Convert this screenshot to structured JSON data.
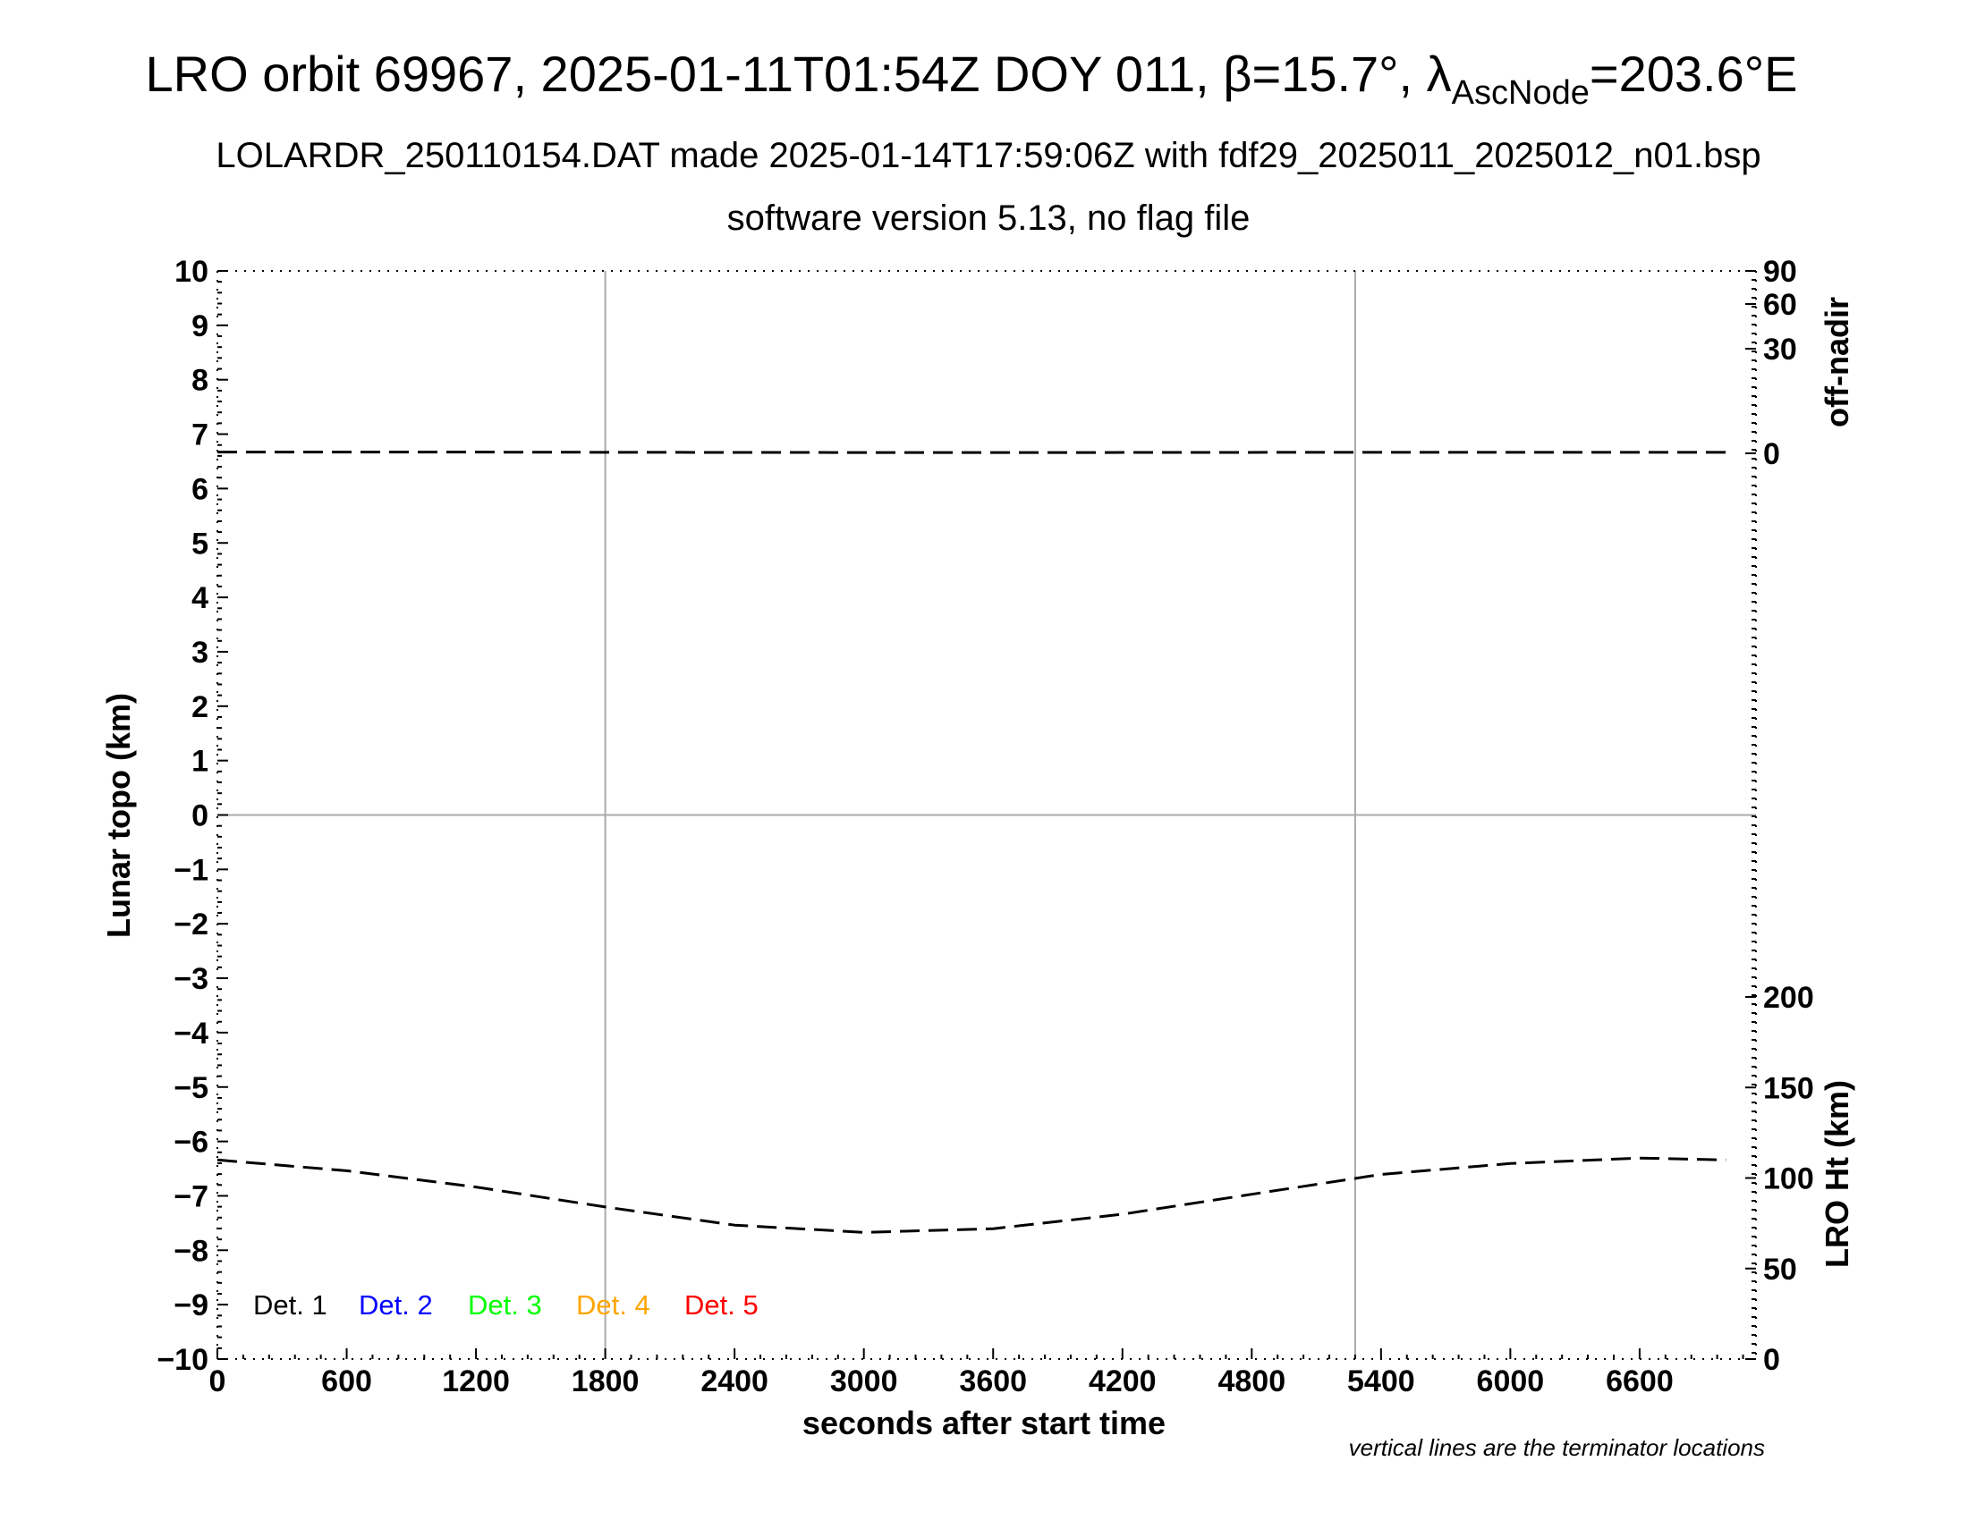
{
  "chart_data": {
    "type": "line",
    "title": {
      "main": "LRO orbit 69967, 2025-01-11T01:54Z DOY 011, β=15.7°, λ",
      "sub": "AscNode",
      "tail": "=203.6°E"
    },
    "subtitle_lines": [
      "LOLARDR_250110154.DAT made 2025-01-14T17:59:06Z with fdf29_2025011_2025012_n01.bsp",
      "software version 5.13, no flag file"
    ],
    "xlabel": "seconds after start time",
    "ylabel": "Lunar topo (km)",
    "y2_top_label": "off-nadir",
    "y2_bottom_label": "LRO Ht (km)",
    "note": "vertical lines are the terminator locations",
    "xlim": [
      0,
      7140
    ],
    "ylim": [
      -10,
      10
    ],
    "x_ticks": [
      0,
      600,
      1200,
      1800,
      2400,
      3000,
      3600,
      4200,
      4800,
      5400,
      6000,
      6600
    ],
    "y_ticks": [
      "10",
      "9",
      "8",
      "7",
      "6",
      "5",
      "4",
      "3",
      "2",
      "1",
      "0",
      "−1",
      "−2",
      "−3",
      "−4",
      "−5",
      "−6",
      "−7",
      "−8",
      "−9",
      "−10"
    ],
    "y_tick_values": [
      10,
      9,
      8,
      7,
      6,
      5,
      4,
      3,
      2,
      1,
      0,
      -1,
      -2,
      -3,
      -4,
      -5,
      -6,
      -7,
      -8,
      -9,
      -10
    ],
    "off_nadir_ticks": [
      {
        "label": "90",
        "value": 90
      },
      {
        "label": "60",
        "value": 60
      },
      {
        "label": "30",
        "value": 30
      },
      {
        "label": "0",
        "value": 0
      }
    ],
    "lro_ht_ticks": [
      {
        "label": "200",
        "value": 200
      },
      {
        "label": "150",
        "value": 150
      },
      {
        "label": "100",
        "value": 100
      },
      {
        "label": "50",
        "value": 50
      },
      {
        "label": "0",
        "value": 0
      }
    ],
    "terminator_lines_x": [
      1800,
      5280
    ],
    "grid_zero_line": true,
    "legend_placement": "bottom-left",
    "legend": [
      {
        "label": "Det. 1",
        "color": "#000000"
      },
      {
        "label": "Det. 2",
        "color": "#0000ff"
      },
      {
        "label": "Det. 3",
        "color": "#00ff00"
      },
      {
        "label": "Det. 4",
        "color": "#ffa500"
      },
      {
        "label": "Det. 5",
        "color": "#ff0000"
      }
    ],
    "series": [
      {
        "units": "deg",
        "axis": "off-nadir",
        "style": "dashed",
        "color": "#000000",
        "x": [
          0,
          1000,
          2000,
          3000,
          4000,
          5000,
          6000,
          7000
        ],
        "values": [
          0.6,
          0.6,
          0.5,
          0.4,
          0.4,
          0.5,
          0.5,
          0.5
        ]
      },
      {
        "units": "km",
        "axis": "LRO Ht",
        "style": "dashed",
        "color": "#000000",
        "x": [
          0,
          600,
          1200,
          1800,
          2400,
          3000,
          3600,
          4200,
          4800,
          5400,
          6000,
          6600,
          7000
        ],
        "values": [
          110,
          104,
          95,
          84,
          74,
          70,
          72,
          80,
          91,
          102,
          108,
          111,
          110
        ]
      }
    ]
  }
}
